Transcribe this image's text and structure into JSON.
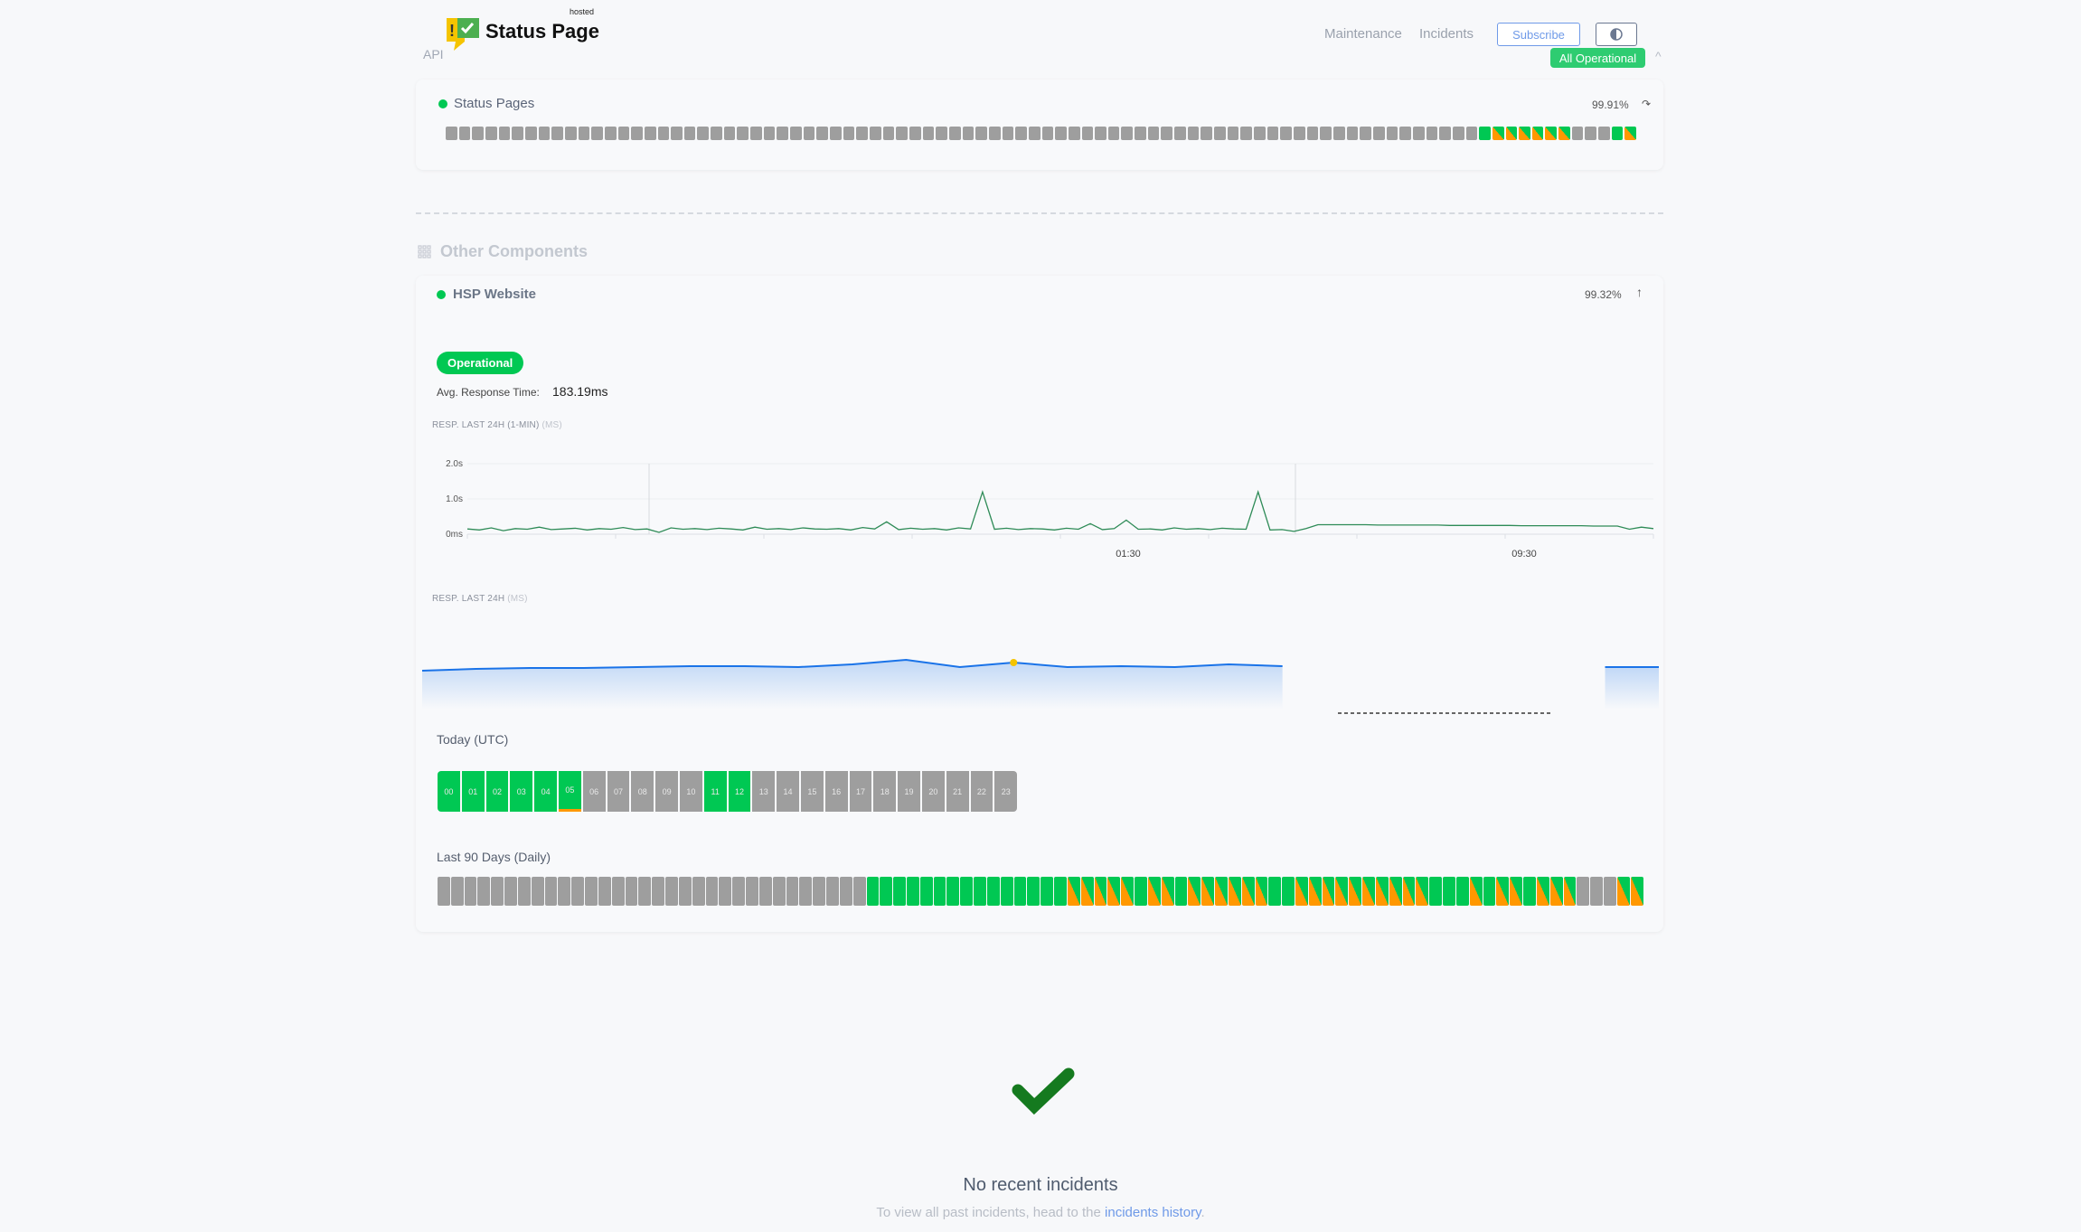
{
  "header": {
    "brand": "Status Page",
    "brand_tag": "hosted",
    "api_link": "API",
    "nav": [
      "Maintenance",
      "Incidents"
    ],
    "subscribe_label": "Subscribe",
    "theme_icon": "half-circle-icon",
    "overall_status": "All Operational",
    "colors": {
      "accent": "#6f9ae8",
      "operational": "#00c853",
      "degraded": "#ff9800",
      "no_data": "#9e9e9e"
    }
  },
  "status_pages": {
    "name": "Status Pages",
    "uptime": "99.91%",
    "legend": {
      "x": "no-data",
      "g": "operational",
      "s": "partial-degraded"
    },
    "bars": "xxxxxxxxxxxxxxxxxxxxxxxxxxxxxxxxxxxxxxxxxxxxxxxxxxxxxxxxxxxxxxxxxxxxxxxxxxxxxxgssssssxxxgs"
  },
  "other": {
    "section_title": "Other Components",
    "component": {
      "name": "HSP Website",
      "uptime": "99.32%",
      "status": "Operational",
      "avg_label": "Avg. Response Time:",
      "avg_value": "183.19ms",
      "chart1_title": "RESP. LAST 24H (1-MIN)",
      "chart1_unit": "(MS)",
      "chart2_title": "RESP. LAST 24H",
      "chart2_unit": "(MS)",
      "today_title": "Today (UTC)",
      "hours": [
        "00",
        "01",
        "02",
        "03",
        "04",
        "05",
        "06",
        "07",
        "08",
        "09",
        "10",
        "11",
        "12",
        "13",
        "14",
        "15",
        "16",
        "17",
        "18",
        "19",
        "20",
        "21",
        "22",
        "23"
      ],
      "hour_states": "gggggmxxxxxggxxxxxxxxxxx",
      "days_title": "Last 90 Days (Daily)",
      "days": "xxxxxxxxxxxxxxxxxxxxxxxxxxxxxxxxgggggggggggggggsssssgssgssssssggssssssssssgggsgssgsssxxxss"
    }
  },
  "chart_data": [
    {
      "type": "line",
      "title": "RESP. LAST 24H (1-MIN) (MS)",
      "y_ticks": [
        "0ms",
        "1.0s",
        "2.0s"
      ],
      "ylim": [
        0,
        2.0
      ],
      "x_ticks": [
        "01:30",
        "09:30"
      ],
      "grid": true,
      "values": [
        0.15,
        0.12,
        0.18,
        0.1,
        0.16,
        0.14,
        0.2,
        0.13,
        0.15,
        0.17,
        0.12,
        0.16,
        0.14,
        0.19,
        0.13,
        0.15,
        0.05,
        0.18,
        0.14,
        0.16,
        0.13,
        0.17,
        0.15,
        0.12,
        0.2,
        0.14,
        0.16,
        0.13,
        0.18,
        0.15,
        0.14,
        0.16,
        0.12,
        0.19,
        0.15,
        0.35,
        0.13,
        0.17,
        0.14,
        0.16,
        0.12,
        0.18,
        0.15,
        1.2,
        0.14,
        0.17,
        0.13,
        0.16,
        0.15,
        0.12,
        0.17,
        0.14,
        0.3,
        0.13,
        0.16,
        0.4,
        0.14,
        0.15,
        0.12,
        0.18,
        0.14,
        0.16,
        0.13,
        0.17,
        0.15,
        0.14,
        1.2,
        0.12,
        0.13,
        0.08,
        0.16,
        0.27,
        0.27,
        0.27,
        0.27,
        0.27,
        0.26,
        0.26,
        0.26,
        0.26,
        0.26,
        0.26,
        0.25,
        0.25,
        0.25,
        0.25,
        0.25,
        0.25,
        0.24,
        0.24,
        0.24,
        0.24,
        0.24,
        0.24,
        0.23,
        0.23,
        0.23,
        0.14,
        0.2,
        0.16
      ]
    },
    {
      "type": "area",
      "title": "RESP. LAST 24H (MS)",
      "values": [
        180,
        186,
        189,
        189,
        192,
        195,
        195,
        192,
        201,
        216,
        192,
        207,
        192,
        195,
        192,
        201,
        195,
        null,
        null,
        null,
        null,
        null,
        192,
        192
      ],
      "highlight_index": 11,
      "color": "#1a73e8"
    }
  ],
  "incidents": {
    "title": "No recent incidents",
    "text": "To view all past incidents, head to the",
    "link": "incidents history",
    "suffix": "."
  }
}
